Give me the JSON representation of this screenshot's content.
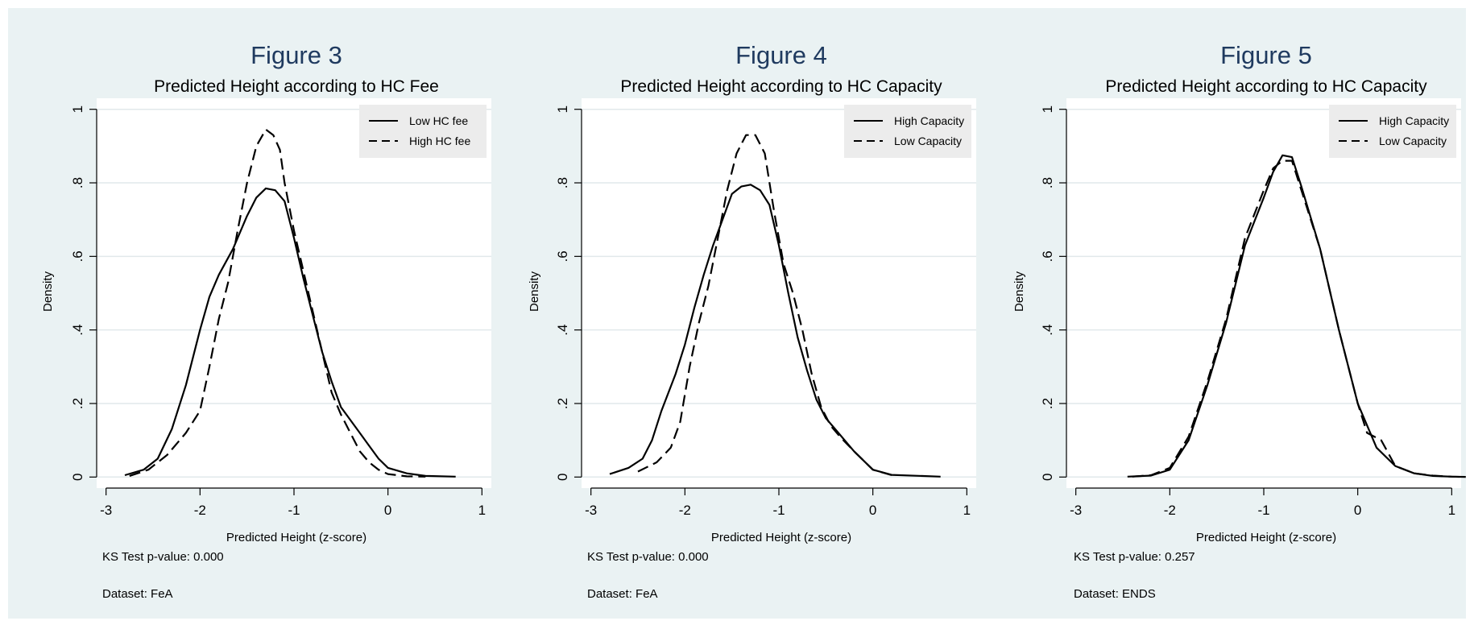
{
  "colors": {
    "graph_region": "#eaf2f3",
    "plot_region": "#ffffff",
    "gridline": "#e1e9eb",
    "line": "#000000",
    "title": "#1f3a5f",
    "legend_bg": "#ececec"
  },
  "chart_data": [
    {
      "type": "line",
      "title": "Figure 3",
      "subtitle": "Predicted Height according to HC Fee",
      "xlabel": "Predicted Height (z-score)",
      "ylabel": "Density",
      "xlim": [
        -3.1,
        1.1
      ],
      "ylim": [
        -0.03,
        1.03
      ],
      "x_ticks": [
        -3,
        -2,
        -1,
        0,
        1
      ],
      "x_tick_labels": [
        "-3",
        "-2",
        "-1",
        "0",
        "1"
      ],
      "y_ticks": [
        0,
        0.2,
        0.4,
        0.6,
        0.8,
        1
      ],
      "y_tick_labels": [
        "0",
        ".2",
        ".4",
        ".6",
        ".8",
        "1"
      ],
      "grid": true,
      "legend_position": "top-right",
      "notes": [
        "KS Test p-value: 0.000",
        "Dataset: FeA"
      ],
      "series": [
        {
          "name": "Low HC fee",
          "style": "solid",
          "x": [
            -2.8,
            -2.6,
            -2.45,
            -2.3,
            -2.15,
            -2.0,
            -1.9,
            -1.8,
            -1.65,
            -1.5,
            -1.4,
            -1.3,
            -1.2,
            -1.1,
            -1.0,
            -0.9,
            -0.8,
            -0.7,
            -0.6,
            -0.5,
            -0.4,
            -0.3,
            -0.2,
            -0.1,
            0.0,
            0.2,
            0.4,
            0.72
          ],
          "y": [
            0.005,
            0.02,
            0.05,
            0.13,
            0.25,
            0.4,
            0.49,
            0.55,
            0.62,
            0.71,
            0.76,
            0.785,
            0.78,
            0.75,
            0.65,
            0.54,
            0.44,
            0.34,
            0.26,
            0.19,
            0.155,
            0.12,
            0.085,
            0.05,
            0.025,
            0.01,
            0.003,
            0.001
          ]
        },
        {
          "name": "High HC fee",
          "style": "dashed",
          "x": [
            -2.75,
            -2.55,
            -2.35,
            -2.15,
            -2.0,
            -1.9,
            -1.8,
            -1.7,
            -1.6,
            -1.5,
            -1.4,
            -1.3,
            -1.22,
            -1.15,
            -1.1,
            -1.0,
            -0.9,
            -0.8,
            -0.7,
            -0.6,
            -0.5,
            -0.4,
            -0.3,
            -0.2,
            -0.1,
            0.0,
            0.2,
            0.4
          ],
          "y": [
            0.003,
            0.02,
            0.06,
            0.12,
            0.18,
            0.3,
            0.43,
            0.53,
            0.67,
            0.8,
            0.9,
            0.945,
            0.93,
            0.89,
            0.8,
            0.67,
            0.56,
            0.45,
            0.34,
            0.23,
            0.17,
            0.12,
            0.07,
            0.04,
            0.02,
            0.008,
            0.002,
            0.001
          ]
        }
      ]
    },
    {
      "type": "line",
      "title": "Figure 4",
      "subtitle": "Predicted Height according to HC Capacity",
      "xlabel": "Predicted Height (z-score)",
      "ylabel": "Density",
      "xlim": [
        -3.1,
        1.1
      ],
      "ylim": [
        -0.03,
        1.03
      ],
      "x_ticks": [
        -3,
        -2,
        -1,
        0,
        1
      ],
      "x_tick_labels": [
        "-3",
        "-2",
        "-1",
        "0",
        "1"
      ],
      "y_ticks": [
        0,
        0.2,
        0.4,
        0.6,
        0.8,
        1
      ],
      "y_tick_labels": [
        "0",
        ".2",
        ".4",
        ".6",
        ".8",
        "1"
      ],
      "grid": true,
      "legend_position": "top-right",
      "notes": [
        "KS Test p-value: 0.000",
        "Dataset: FeA"
      ],
      "series": [
        {
          "name": "High Capacity",
          "style": "solid",
          "x": [
            -2.8,
            -2.6,
            -2.45,
            -2.35,
            -2.25,
            -2.1,
            -2.0,
            -1.9,
            -1.8,
            -1.7,
            -1.6,
            -1.5,
            -1.4,
            -1.3,
            -1.2,
            -1.1,
            -1.0,
            -0.9,
            -0.8,
            -0.7,
            -0.6,
            -0.5,
            -0.4,
            -0.2,
            0.0,
            0.2,
            0.72
          ],
          "y": [
            0.008,
            0.025,
            0.05,
            0.1,
            0.18,
            0.28,
            0.36,
            0.46,
            0.55,
            0.63,
            0.7,
            0.77,
            0.79,
            0.795,
            0.78,
            0.74,
            0.63,
            0.5,
            0.38,
            0.29,
            0.21,
            0.16,
            0.13,
            0.07,
            0.02,
            0.006,
            0.001
          ]
        },
        {
          "name": "Low Capacity",
          "style": "dashed",
          "x": [
            -2.5,
            -2.3,
            -2.15,
            -2.05,
            -1.95,
            -1.85,
            -1.75,
            -1.65,
            -1.55,
            -1.45,
            -1.35,
            -1.25,
            -1.15,
            -1.05,
            -0.95,
            -0.85,
            -0.75,
            -0.65,
            -0.55,
            -0.45,
            -0.35,
            -0.2,
            0.0,
            0.2
          ],
          "y": [
            0.015,
            0.04,
            0.08,
            0.15,
            0.3,
            0.42,
            0.52,
            0.65,
            0.78,
            0.88,
            0.93,
            0.93,
            0.88,
            0.72,
            0.58,
            0.5,
            0.4,
            0.28,
            0.19,
            0.14,
            0.11,
            0.07,
            0.02,
            0.005
          ]
        }
      ]
    },
    {
      "type": "line",
      "title": "Figure 5",
      "subtitle": "Predicted Height according to HC Capacity",
      "xlabel": "Predicted Height (z-score)",
      "ylabel": "Density",
      "xlim": [
        -3.1,
        1.1
      ],
      "ylim": [
        -0.03,
        1.03
      ],
      "x_ticks": [
        -3,
        -2,
        -1,
        0,
        1
      ],
      "x_tick_labels": [
        "-3",
        "-2",
        "-1",
        "0",
        "1"
      ],
      "y_ticks": [
        0,
        0.2,
        0.4,
        0.6,
        0.8,
        1
      ],
      "y_tick_labels": [
        "0",
        ".2",
        ".4",
        ".6",
        ".8",
        "1"
      ],
      "grid": true,
      "legend_position": "top-right",
      "notes": [
        "KS Test p-value: 0.257",
        "Dataset: ENDS"
      ],
      "series": [
        {
          "name": "High Capacity",
          "style": "solid",
          "x": [
            -2.45,
            -2.2,
            -2.0,
            -1.8,
            -1.6,
            -1.4,
            -1.2,
            -1.0,
            -0.9,
            -0.8,
            -0.7,
            -0.6,
            -0.4,
            -0.2,
            0.0,
            0.2,
            0.4,
            0.6,
            0.8,
            1.0,
            1.15
          ],
          "y": [
            0.001,
            0.004,
            0.02,
            0.1,
            0.25,
            0.42,
            0.63,
            0.76,
            0.83,
            0.875,
            0.87,
            0.79,
            0.62,
            0.4,
            0.2,
            0.08,
            0.03,
            0.01,
            0.003,
            0.001,
            0.0005
          ]
        },
        {
          "name": "Low Capacity",
          "style": "dashed",
          "x": [
            -2.4,
            -2.2,
            -2.0,
            -1.8,
            -1.6,
            -1.4,
            -1.2,
            -1.0,
            -0.9,
            -0.8,
            -0.7,
            -0.6,
            -0.4,
            -0.2,
            0.0,
            0.1,
            0.25,
            0.4,
            0.6,
            0.8,
            1.0,
            1.1
          ],
          "y": [
            0.001,
            0.005,
            0.025,
            0.11,
            0.26,
            0.43,
            0.65,
            0.78,
            0.84,
            0.86,
            0.86,
            0.78,
            0.62,
            0.4,
            0.2,
            0.12,
            0.1,
            0.03,
            0.01,
            0.004,
            0.001,
            0.0005
          ]
        }
      ]
    }
  ]
}
